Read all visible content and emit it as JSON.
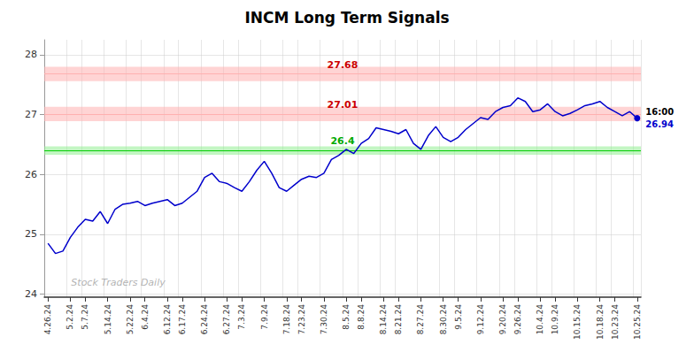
{
  "chart_data": {
    "type": "line",
    "title": "INCM Long Term Signals",
    "categories": [
      "4.26.24",
      null,
      null,
      "5.2.24",
      null,
      "5.7.24",
      null,
      null,
      "5.14.24",
      null,
      null,
      "5.22.24",
      null,
      "6.4.24",
      null,
      null,
      "6.12.24",
      null,
      "6.17.24",
      null,
      null,
      "6.24.24",
      null,
      null,
      "6.27.24",
      null,
      "7.3.24",
      null,
      null,
      "7.9.24",
      null,
      null,
      "7.18.24",
      null,
      "7.23.24",
      null,
      null,
      "7.30.24",
      null,
      null,
      "8.5.24",
      null,
      "8.8.24",
      null,
      null,
      "8.14.24",
      null,
      "8.21.24",
      null,
      null,
      "8.27.24",
      null,
      null,
      "8.30.24",
      null,
      "9.5.24",
      null,
      null,
      "9.12.24",
      null,
      null,
      "9.20.24",
      null,
      "9.26.24",
      null,
      null,
      "10.4.24",
      null,
      "10.9.24",
      null,
      null,
      "10.15.24",
      null,
      null,
      "10.18.24",
      null,
      "10.23.24",
      null,
      null,
      "10.25.24"
    ],
    "values": [
      24.85,
      24.68,
      24.72,
      24.95,
      25.12,
      25.25,
      25.22,
      25.38,
      25.18,
      25.42,
      25.5,
      25.52,
      25.55,
      25.48,
      25.52,
      25.55,
      25.58,
      25.48,
      25.52,
      25.62,
      25.72,
      25.95,
      26.02,
      25.88,
      25.85,
      25.78,
      25.72,
      25.88,
      26.07,
      26.22,
      26.02,
      25.78,
      25.72,
      25.82,
      25.92,
      25.97,
      25.95,
      26.02,
      26.25,
      26.32,
      26.42,
      26.35,
      26.52,
      26.6,
      26.78,
      26.75,
      26.72,
      26.68,
      26.75,
      26.52,
      26.42,
      26.65,
      26.8,
      26.62,
      26.55,
      26.62,
      26.75,
      26.85,
      26.95,
      26.92,
      27.05,
      27.12,
      27.15,
      27.28,
      27.22,
      27.05,
      27.08,
      27.18,
      27.05,
      26.98,
      27.02,
      27.08,
      27.15,
      27.18,
      27.22,
      27.12,
      27.05,
      26.98,
      27.05,
      26.94
    ],
    "color": "#0000cc",
    "ylim": [
      23.95,
      28.25
    ],
    "yticks": [
      24,
      25,
      26,
      27,
      28
    ],
    "grid": true,
    "lines": [
      {
        "value": 27.68,
        "color": "#cc0000",
        "line_color": "#ffb0b0",
        "band": [
          27.56,
          27.8
        ],
        "band_color": "#ffb0b0"
      },
      {
        "value": 27.01,
        "color": "#cc0000",
        "line_color": "#ffb0b0",
        "band": [
          26.89,
          27.13
        ],
        "band_color": "#ffb0b0"
      },
      {
        "value": 26.4,
        "color": "#00aa00",
        "line_color": "#00cc00",
        "band": [
          26.33,
          26.47
        ],
        "band_color": "#90ee90"
      }
    ],
    "last_time": "16:00",
    "last_price": "26.94",
    "watermark": "Stock Traders Daily"
  }
}
